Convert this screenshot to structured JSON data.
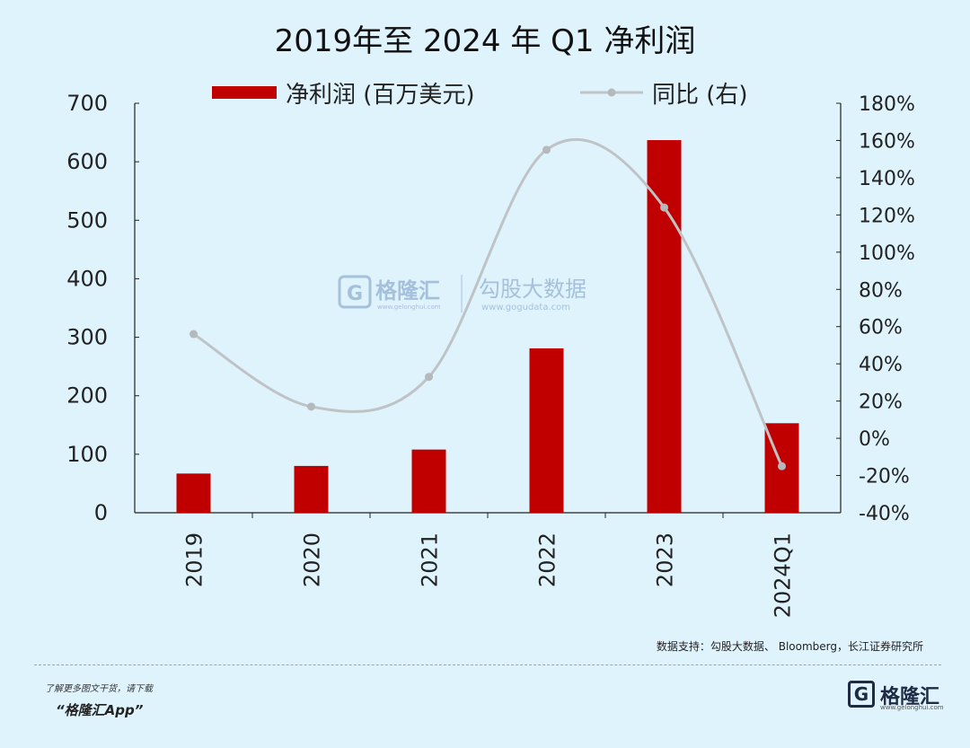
{
  "title": "2019年至 2024 年 Q1 净利润",
  "chart_data": {
    "type": "bar",
    "categories": [
      "2019",
      "2020",
      "2021",
      "2022",
      "2023",
      "2024Q1"
    ],
    "series": [
      {
        "name": "净利润 (百万美元)",
        "type": "bar",
        "axis": "left",
        "color": "#c00000",
        "values": [
          67,
          80,
          108,
          281,
          637,
          153
        ]
      },
      {
        "name": "同比 (右)",
        "type": "line",
        "axis": "right",
        "color": "#bfc3c6",
        "values": [
          56,
          17,
          33,
          155,
          124,
          -15
        ]
      }
    ],
    "y_left": {
      "min": 0,
      "max": 700,
      "ticks": [
        "0",
        "100",
        "200",
        "300",
        "400",
        "500",
        "600",
        "700"
      ]
    },
    "y_right": {
      "min": -40,
      "max": 180,
      "ticks": [
        "-40%",
        "-20%",
        "0%",
        "20%",
        "40%",
        "60%",
        "80%",
        "100%",
        "120%",
        "140%",
        "160%",
        "180%"
      ]
    },
    "legend": [
      "净利润 (百万美元)",
      "同比 (右)"
    ],
    "legend_position": "top"
  },
  "watermark": {
    "brand": "格隆汇",
    "brand_url": "www.gelonghui.com",
    "data_brand": "勾股大数据",
    "data_url": "www.gogudata.com"
  },
  "source": "数据支持：勾股大数据、 Bloomberg，长江证券研究所",
  "promo_line1": "了解更多图文干货，请下载",
  "promo_line2": "“格隆汇App”",
  "footer_brand": "格隆汇",
  "footer_url": "www.gelonghui.com"
}
